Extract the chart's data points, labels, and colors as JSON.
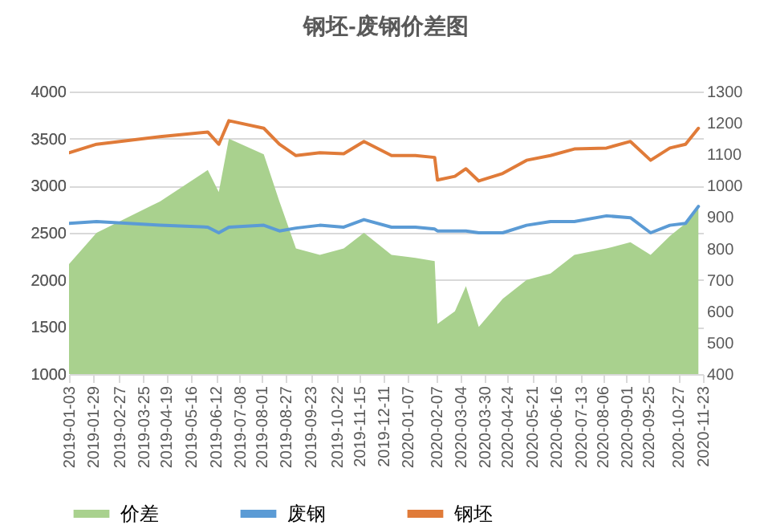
{
  "chart_data": {
    "type": "line",
    "title": "钢坯-废钢价差图",
    "x": [
      "2019-01-03",
      "2019-02-02",
      "2019-04-12",
      "2019-06-03",
      "2019-06-15",
      "2019-06-26",
      "2019-08-03",
      "2019-08-20",
      "2019-09-07",
      "2019-10-03",
      "2019-10-29",
      "2019-11-20",
      "2019-12-20",
      "2020-01-15",
      "2020-02-05",
      "2020-02-08",
      "2020-02-27",
      "2020-03-10",
      "2020-03-24",
      "2020-04-19",
      "2020-05-15",
      "2020-06-10",
      "2020-07-06",
      "2020-08-10",
      "2020-09-05",
      "2020-09-27",
      "2020-10-18",
      "2020-11-04",
      "2020-11-18"
    ],
    "series": [
      {
        "name": "价差",
        "type": "area",
        "axis": "y2",
        "color": "#a9d18e",
        "values": [
          750,
          850,
          950,
          1050,
          980,
          1150,
          1100,
          950,
          800,
          780,
          800,
          850,
          780,
          770,
          760,
          560,
          600,
          680,
          550,
          640,
          700,
          720,
          780,
          800,
          820,
          780,
          840,
          880,
          930
        ]
      },
      {
        "name": "废钢",
        "type": "line",
        "color": "#5b9bd5",
        "values": [
          2600,
          2620,
          2580,
          2560,
          2500,
          2560,
          2580,
          2520,
          2550,
          2580,
          2560,
          2640,
          2560,
          2560,
          2540,
          2520,
          2520,
          2520,
          2500,
          2500,
          2580,
          2620,
          2620,
          2680,
          2660,
          2500,
          2580,
          2600,
          2780
        ]
      },
      {
        "name": "钢坯",
        "type": "line",
        "color": "#e07b39",
        "values": [
          3350,
          3440,
          3520,
          3570,
          3440,
          3690,
          3610,
          3440,
          3320,
          3350,
          3340,
          3470,
          3320,
          3320,
          3300,
          3060,
          3100,
          3180,
          3050,
          3130,
          3270,
          3320,
          3390,
          3400,
          3470,
          3270,
          3400,
          3440,
          3610
        ]
      }
    ],
    "xlim": [
      "2019-01-03",
      "2020-11-23"
    ],
    "xticks": [
      "2019-01-03",
      "2019-01-29",
      "2019-02-27",
      "2019-03-25",
      "2019-04-19",
      "2019-05-16",
      "2019-06-12",
      "2019-07-08",
      "2019-08-01",
      "2019-08-27",
      "2019-09-23",
      "2019-10-22",
      "2019-11-15",
      "2019-12-11",
      "2020-01-07",
      "2020-02-07",
      "2020-03-04",
      "2020-03-30",
      "2020-04-24",
      "2020-05-21",
      "2020-06-16",
      "2020-07-13",
      "2020-08-06",
      "2020-09-01",
      "2020-09-25",
      "2020-10-27",
      "2020-11-23"
    ],
    "ylim": [
      1000,
      4000
    ],
    "yticks": [
      1000,
      1500,
      2000,
      2500,
      3000,
      3500,
      4000
    ],
    "y2lim": [
      400,
      1300
    ],
    "y2ticks": [
      400,
      500,
      600,
      700,
      800,
      900,
      1000,
      1100,
      1200,
      1300
    ],
    "grid": "y",
    "legend": "bottom",
    "marker": "none",
    "line_style": "solid"
  }
}
